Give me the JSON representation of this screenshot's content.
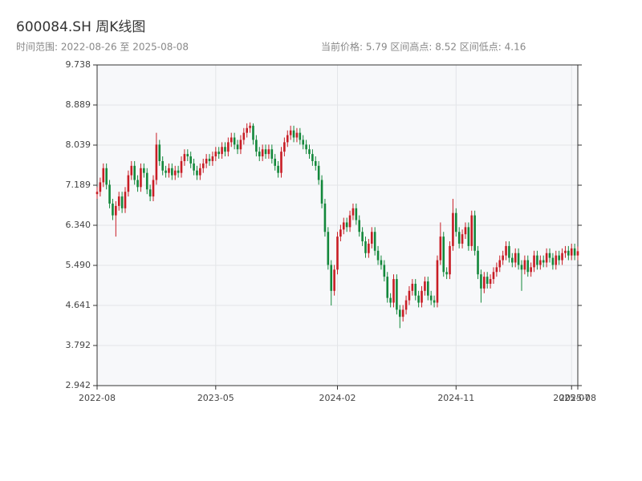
{
  "chart_data": {
    "type": "candlestick",
    "title": "600084.SH 周K线图",
    "subtitle": "时间范围: 2022-08-26 至 2025-08-08",
    "summary": "当前价格: 5.79  区间高点: 8.52  区间低点: 4.16",
    "up_color": "#c81d25",
    "down_color": "#13883b",
    "grid": true,
    "ylim": [
      2.942,
      9.738
    ],
    "yticks": [
      2.942,
      3.792,
      4.641,
      {
        "value": 5.49,
        "label": "5.490"
      },
      {
        "value": 6.34,
        "label": "6.340"
      },
      7.189,
      8.039,
      8.889,
      9.738
    ],
    "categories": [
      "2022-08",
      null,
      null,
      null,
      null,
      null,
      null,
      null,
      null,
      null,
      null,
      null,
      null,
      null,
      null,
      null,
      null,
      null,
      null,
      null,
      null,
      null,
      null,
      null,
      null,
      null,
      null,
      null,
      null,
      null,
      null,
      null,
      null,
      null,
      null,
      null,
      null,
      null,
      "2023-05",
      null,
      null,
      null,
      null,
      null,
      null,
      null,
      null,
      null,
      null,
      null,
      null,
      null,
      null,
      null,
      null,
      null,
      null,
      null,
      null,
      null,
      null,
      null,
      null,
      null,
      null,
      null,
      null,
      null,
      null,
      null,
      null,
      null,
      null,
      null,
      null,
      null,
      null,
      "2024-02",
      null,
      null,
      null,
      null,
      null,
      null,
      null,
      null,
      null,
      null,
      null,
      null,
      null,
      null,
      null,
      null,
      null,
      null,
      null,
      null,
      null,
      null,
      null,
      null,
      null,
      null,
      null,
      null,
      null,
      null,
      null,
      null,
      null,
      null,
      null,
      null,
      null,
      "2024-11",
      null,
      null,
      null,
      null,
      null,
      null,
      null,
      null,
      null,
      null,
      null,
      null,
      null,
      null,
      null,
      null,
      null,
      null,
      null,
      null,
      null,
      null,
      null,
      null,
      null,
      null,
      null,
      null,
      null,
      null,
      null,
      null,
      null,
      null,
      null,
      null,
      "2025-07",
      null,
      "2025-08"
    ],
    "open": [
      7.0,
      7.05,
      7.25,
      7.55,
      7.2,
      6.8,
      6.55,
      6.75,
      6.95,
      6.7,
      7.05,
      7.4,
      7.6,
      7.3,
      7.15,
      7.55,
      7.45,
      7.1,
      6.95,
      7.3,
      8.05,
      7.7,
      7.5,
      7.45,
      7.55,
      7.4,
      7.5,
      7.45,
      7.7,
      7.85,
      7.8,
      7.65,
      7.5,
      7.4,
      7.55,
      7.65,
      7.75,
      7.7,
      7.8,
      7.9,
      7.85,
      8.0,
      7.9,
      8.1,
      8.2,
      8.05,
      7.95,
      8.15,
      8.3,
      8.4,
      8.45,
      8.15,
      7.9,
      7.8,
      7.95,
      7.85,
      7.95,
      7.75,
      7.6,
      7.45,
      7.9,
      8.1,
      8.25,
      8.35,
      8.2,
      8.3,
      8.15,
      8.05,
      7.95,
      7.85,
      7.7,
      7.6,
      7.3,
      6.8,
      6.2,
      5.5,
      4.95,
      5.4,
      6.1,
      6.25,
      6.4,
      6.3,
      6.55,
      6.7,
      6.45,
      6.2,
      6.0,
      5.75,
      5.95,
      6.2,
      5.8,
      5.6,
      5.5,
      5.25,
      4.8,
      4.7,
      5.2,
      4.55,
      4.4,
      4.55,
      4.75,
      4.95,
      5.1,
      4.85,
      4.7,
      4.95,
      5.15,
      4.85,
      4.75,
      4.7,
      5.6,
      6.1,
      5.35,
      5.3,
      5.9,
      6.6,
      6.2,
      5.95,
      6.15,
      6.3,
      5.9,
      6.55,
      5.8,
      5.3,
      5.0,
      5.25,
      5.1,
      5.2,
      5.35,
      5.45,
      5.6,
      5.7,
      5.9,
      5.65,
      5.55,
      5.75,
      5.5,
      5.4,
      5.6,
      5.35,
      5.45,
      5.7,
      5.5,
      5.6,
      5.55,
      5.75,
      5.65,
      5.5,
      5.7,
      5.6,
      5.75,
      5.8,
      5.7,
      5.85,
      5.7
    ],
    "high": [
      7.15,
      7.35,
      7.65,
      7.65,
      7.3,
      6.9,
      6.85,
      7.05,
      7.05,
      7.15,
      7.5,
      7.7,
      7.7,
      7.4,
      7.65,
      7.65,
      7.55,
      7.2,
      7.4,
      8.3,
      8.15,
      7.8,
      7.6,
      7.65,
      7.65,
      7.6,
      7.6,
      7.8,
      7.95,
      7.95,
      7.9,
      7.75,
      7.6,
      7.65,
      7.75,
      7.85,
      7.85,
      7.9,
      8.0,
      8.0,
      8.1,
      8.1,
      8.2,
      8.3,
      8.3,
      8.15,
      8.25,
      8.4,
      8.5,
      8.52,
      8.5,
      8.25,
      8.0,
      8.05,
      8.05,
      8.05,
      8.05,
      7.85,
      7.7,
      8.0,
      8.2,
      8.35,
      8.45,
      8.45,
      8.4,
      8.4,
      8.25,
      8.15,
      8.05,
      7.95,
      7.8,
      7.7,
      7.4,
      6.9,
      6.3,
      5.6,
      5.5,
      6.2,
      6.35,
      6.5,
      6.5,
      6.65,
      6.8,
      6.8,
      6.55,
      6.3,
      6.1,
      6.05,
      6.3,
      6.3,
      5.9,
      5.7,
      5.6,
      5.35,
      4.9,
      5.3,
      5.3,
      4.65,
      4.65,
      4.85,
      5.05,
      5.2,
      5.2,
      4.95,
      5.05,
      5.25,
      5.25,
      4.95,
      4.85,
      5.7,
      6.4,
      6.2,
      5.45,
      6.0,
      6.9,
      6.7,
      6.3,
      6.25,
      6.4,
      6.4,
      6.65,
      6.65,
      5.9,
      5.4,
      5.35,
      5.35,
      5.3,
      5.45,
      5.55,
      5.7,
      5.8,
      6.0,
      6.0,
      5.75,
      5.85,
      5.85,
      5.6,
      5.7,
      5.7,
      5.55,
      5.8,
      5.8,
      5.7,
      5.7,
      5.85,
      5.85,
      5.75,
      5.8,
      5.8,
      5.85,
      5.9,
      5.9,
      5.95,
      5.95,
      5.89
    ],
    "low": [
      6.9,
      6.95,
      7.15,
      7.1,
      6.7,
      6.45,
      6.1,
      6.65,
      6.6,
      6.6,
      6.95,
      7.3,
      7.2,
      7.05,
      7.05,
      7.35,
      7.0,
      6.85,
      6.85,
      7.2,
      7.6,
      7.4,
      7.35,
      7.35,
      7.3,
      7.3,
      7.35,
      7.35,
      7.6,
      7.7,
      7.55,
      7.4,
      7.3,
      7.3,
      7.45,
      7.55,
      7.6,
      7.6,
      7.7,
      7.75,
      7.75,
      7.8,
      7.8,
      8.0,
      7.95,
      7.85,
      7.85,
      8.05,
      8.2,
      8.3,
      8.05,
      7.8,
      7.7,
      7.7,
      7.75,
      7.75,
      7.65,
      7.5,
      7.35,
      7.35,
      7.8,
      8.0,
      8.15,
      8.1,
      8.1,
      8.05,
      7.95,
      7.85,
      7.75,
      7.6,
      7.5,
      7.2,
      6.7,
      6.1,
      5.4,
      4.64,
      4.85,
      5.3,
      6.0,
      6.15,
      6.2,
      6.2,
      6.45,
      6.35,
      6.1,
      5.9,
      5.65,
      5.65,
      5.85,
      5.7,
      5.5,
      5.4,
      5.15,
      4.7,
      4.6,
      4.6,
      4.45,
      4.16,
      4.3,
      4.45,
      4.65,
      4.85,
      4.75,
      4.6,
      4.6,
      4.85,
      4.75,
      4.65,
      4.6,
      4.6,
      5.5,
      5.25,
      5.2,
      5.2,
      5.8,
      6.1,
      5.85,
      5.85,
      6.05,
      5.8,
      5.8,
      5.7,
      5.2,
      4.7,
      4.9,
      5.0,
      5.0,
      5.1,
      5.25,
      5.35,
      5.5,
      5.6,
      5.55,
      5.45,
      5.45,
      5.4,
      4.95,
      5.3,
      5.25,
      5.25,
      5.35,
      5.4,
      5.4,
      5.45,
      5.45,
      5.55,
      5.4,
      5.4,
      5.5,
      5.5,
      5.65,
      5.6,
      5.6,
      5.6,
      5.6
    ],
    "close": [
      7.05,
      7.25,
      7.55,
      7.2,
      6.8,
      6.55,
      6.75,
      6.95,
      6.7,
      7.05,
      7.4,
      7.6,
      7.3,
      7.15,
      7.55,
      7.45,
      7.1,
      6.95,
      7.3,
      8.05,
      7.7,
      7.5,
      7.45,
      7.55,
      7.4,
      7.5,
      7.45,
      7.7,
      7.85,
      7.8,
      7.65,
      7.5,
      7.4,
      7.55,
      7.65,
      7.75,
      7.7,
      7.8,
      7.9,
      7.85,
      8.0,
      7.9,
      8.1,
      8.2,
      8.05,
      7.95,
      8.15,
      8.3,
      8.4,
      8.45,
      8.15,
      7.9,
      7.8,
      7.95,
      7.85,
      7.95,
      7.75,
      7.6,
      7.45,
      7.9,
      8.1,
      8.25,
      8.35,
      8.2,
      8.3,
      8.15,
      8.05,
      7.95,
      7.85,
      7.7,
      7.6,
      7.3,
      6.8,
      6.2,
      5.5,
      4.95,
      5.4,
      6.1,
      6.25,
      6.4,
      6.3,
      6.55,
      6.7,
      6.45,
      6.2,
      6.0,
      5.75,
      5.95,
      6.2,
      5.8,
      5.6,
      5.5,
      5.25,
      4.8,
      4.7,
      5.2,
      4.55,
      4.4,
      4.55,
      4.75,
      4.95,
      5.1,
      4.85,
      4.7,
      4.95,
      5.15,
      4.85,
      4.75,
      4.7,
      5.6,
      6.1,
      5.35,
      5.3,
      5.9,
      6.6,
      6.2,
      5.95,
      6.15,
      6.3,
      5.9,
      6.55,
      5.8,
      5.3,
      5.0,
      5.25,
      5.1,
      5.2,
      5.35,
      5.45,
      5.6,
      5.7,
      5.9,
      5.65,
      5.55,
      5.75,
      5.5,
      5.4,
      5.6,
      5.35,
      5.45,
      5.7,
      5.5,
      5.6,
      5.55,
      5.75,
      5.65,
      5.5,
      5.7,
      5.6,
      5.75,
      5.8,
      5.7,
      5.85,
      5.7,
      5.79
    ]
  }
}
